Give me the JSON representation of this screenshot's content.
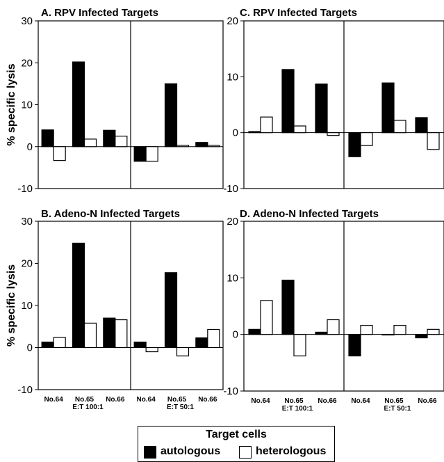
{
  "legend": {
    "title": "Target  cells",
    "items": [
      {
        "label": "autologous",
        "fill": "#000000"
      },
      {
        "label": "heterologous",
        "fill": "#ffffff"
      }
    ]
  },
  "chart_data": [
    {
      "type": "bar",
      "title": "A.  RPV Infected Targets",
      "ylabel": "% specific lysis",
      "ylim": [
        -10,
        30
      ],
      "yticks": [
        -10,
        0,
        10,
        20,
        30
      ],
      "group_labels": [],
      "groups": [
        {
          "label": "",
          "categories": [
            "No.64",
            "No.65",
            "No.66"
          ],
          "series": [
            {
              "name": "autologous",
              "values": [
                4.0,
                20.2,
                3.9
              ]
            },
            {
              "name": "heterologous",
              "values": [
                -3.3,
                1.8,
                2.5
              ]
            }
          ]
        },
        {
          "label": "",
          "categories": [
            "No.64",
            "No.65",
            "No.66"
          ],
          "series": [
            {
              "name": "autologous",
              "values": [
                -3.5,
                15.0,
                1.0
              ]
            },
            {
              "name": "heterologous",
              "values": [
                -3.5,
                0.3,
                0.3
              ]
            }
          ]
        }
      ]
    },
    {
      "type": "bar",
      "title": "C.  RPV Infected Targets",
      "ylabel": "",
      "ylim": [
        -10,
        20
      ],
      "yticks": [
        -10,
        0,
        10,
        20
      ],
      "groups": [
        {
          "label": "",
          "categories": [
            "No.64",
            "No.65",
            "No.66"
          ],
          "series": [
            {
              "name": "autologous",
              "values": [
                0.2,
                11.3,
                8.7
              ]
            },
            {
              "name": "heterologous",
              "values": [
                2.8,
                1.2,
                -0.5
              ]
            }
          ]
        },
        {
          "label": "",
          "categories": [
            "No.64",
            "No.65",
            "No.66"
          ],
          "series": [
            {
              "name": "autologous",
              "values": [
                -4.3,
                8.9,
                2.7
              ]
            },
            {
              "name": "heterologous",
              "values": [
                -2.3,
                2.2,
                -3.0
              ]
            }
          ]
        }
      ]
    },
    {
      "type": "bar",
      "title": "B.  Adeno-N  Infected Targets",
      "ylabel": "% specific lysis",
      "ylim": [
        -10,
        30
      ],
      "yticks": [
        -10,
        0,
        10,
        20,
        30
      ],
      "groups": [
        {
          "label": "E:T  100:1",
          "categories": [
            "No.64",
            "No.65",
            "No.66"
          ],
          "series": [
            {
              "name": "autologous",
              "values": [
                1.3,
                24.8,
                7.0
              ]
            },
            {
              "name": "heterologous",
              "values": [
                2.4,
                5.8,
                6.6
              ]
            }
          ]
        },
        {
          "label": "E:T  50:1",
          "categories": [
            "No.64",
            "No.65",
            "No.66"
          ],
          "series": [
            {
              "name": "autologous",
              "values": [
                1.3,
                17.8,
                2.3
              ]
            },
            {
              "name": "heterologous",
              "values": [
                -1.0,
                -2.0,
                4.3
              ]
            }
          ]
        }
      ]
    },
    {
      "type": "bar",
      "title": "D.  Adeno-N  Infected Targets",
      "ylabel": "",
      "ylim": [
        -10,
        20
      ],
      "yticks": [
        -10,
        0,
        10,
        20
      ],
      "groups": [
        {
          "label": "E:T  100:1",
          "categories": [
            "No.64",
            "No.65",
            "No.66"
          ],
          "series": [
            {
              "name": "autologous",
              "values": [
                0.9,
                9.6,
                0.4
              ]
            },
            {
              "name": "heterologous",
              "values": [
                6.0,
                -3.8,
                2.6
              ]
            }
          ]
        },
        {
          "label": "E:T  50:1",
          "categories": [
            "No.64",
            "No.65",
            "No.66"
          ],
          "series": [
            {
              "name": "autologous",
              "values": [
                -3.8,
                0.0,
                -0.6
              ]
            },
            {
              "name": "heterologous",
              "values": [
                1.6,
                1.6,
                0.9
              ]
            }
          ]
        }
      ]
    }
  ]
}
